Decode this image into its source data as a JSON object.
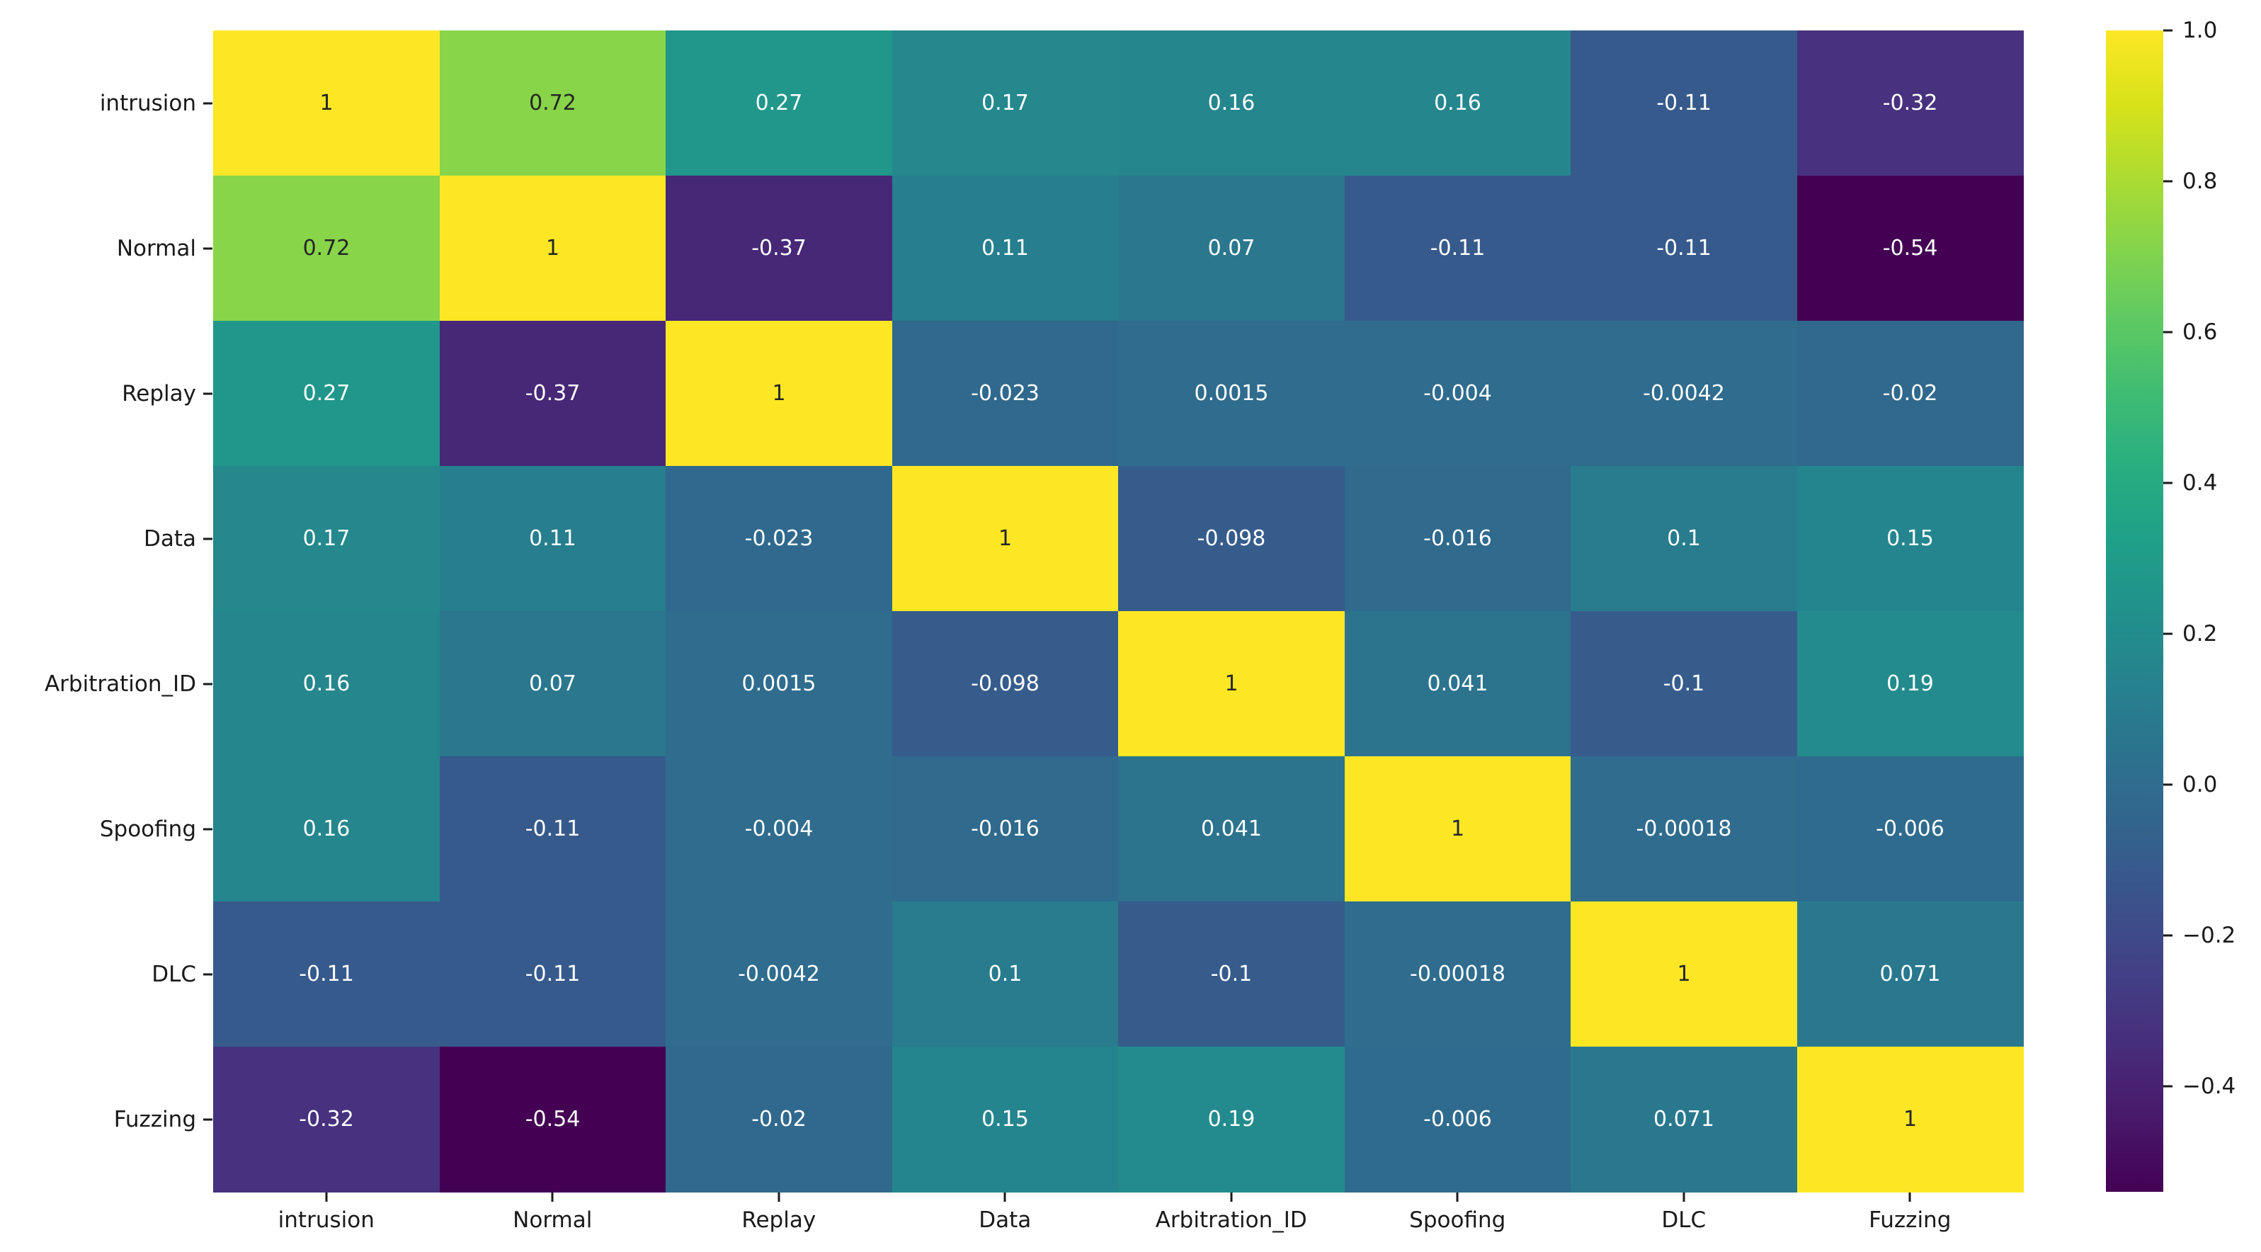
{
  "figure": {
    "background_color": "#ffffff",
    "axis_text_color": "#1a1a1a",
    "annotation_dark_text_color": "#262626",
    "annotation_light_text_color": "#ffffff"
  },
  "chart_data": {
    "type": "heatmap",
    "title": "",
    "xlabel": "",
    "ylabel": "",
    "categories": [
      "intrusion",
      "Normal",
      "Replay",
      "Data",
      "Arbitration_ID",
      "Spoofing",
      "DLC",
      "Fuzzing"
    ],
    "matrix": [
      [
        "1",
        "0.72",
        "0.27",
        "0.17",
        "0.16",
        "0.16",
        "-0.11",
        "-0.32"
      ],
      [
        "0.72",
        "1",
        "-0.37",
        "0.11",
        "0.07",
        "-0.11",
        "-0.11",
        "-0.54"
      ],
      [
        "0.27",
        "-0.37",
        "1",
        "-0.023",
        "0.0015",
        "-0.004",
        "-0.0042",
        "-0.02"
      ],
      [
        "0.17",
        "0.11",
        "-0.023",
        "1",
        "-0.098",
        "-0.016",
        "0.1",
        "0.15"
      ],
      [
        "0.16",
        "0.07",
        "0.0015",
        "-0.098",
        "1",
        "0.041",
        "-0.1",
        "0.19"
      ],
      [
        "0.16",
        "-0.11",
        "-0.004",
        "-0.016",
        "0.041",
        "1",
        "-0.00018",
        "-0.006"
      ],
      [
        "-0.11",
        "-0.11",
        "-0.0042",
        "0.1",
        "-0.1",
        "-0.00018",
        "1",
        "0.071"
      ],
      [
        "-0.32",
        "-0.54",
        "-0.02",
        "0.15",
        "0.19",
        "-0.006",
        "0.071",
        "1"
      ]
    ],
    "colormap": "viridis",
    "vmin": -0.54,
    "vmax": 1.0,
    "grid": false,
    "legend_position": "right-colorbar",
    "colorbar_tick_values": [
      1.0,
      0.8,
      0.6,
      0.4,
      0.2,
      0.0,
      -0.2,
      -0.4
    ],
    "colorbar_tick_labels": [
      "1.0",
      "0.8",
      "0.6",
      "0.4",
      "0.2",
      "0.0",
      "−0.2",
      "−0.4"
    ]
  }
}
